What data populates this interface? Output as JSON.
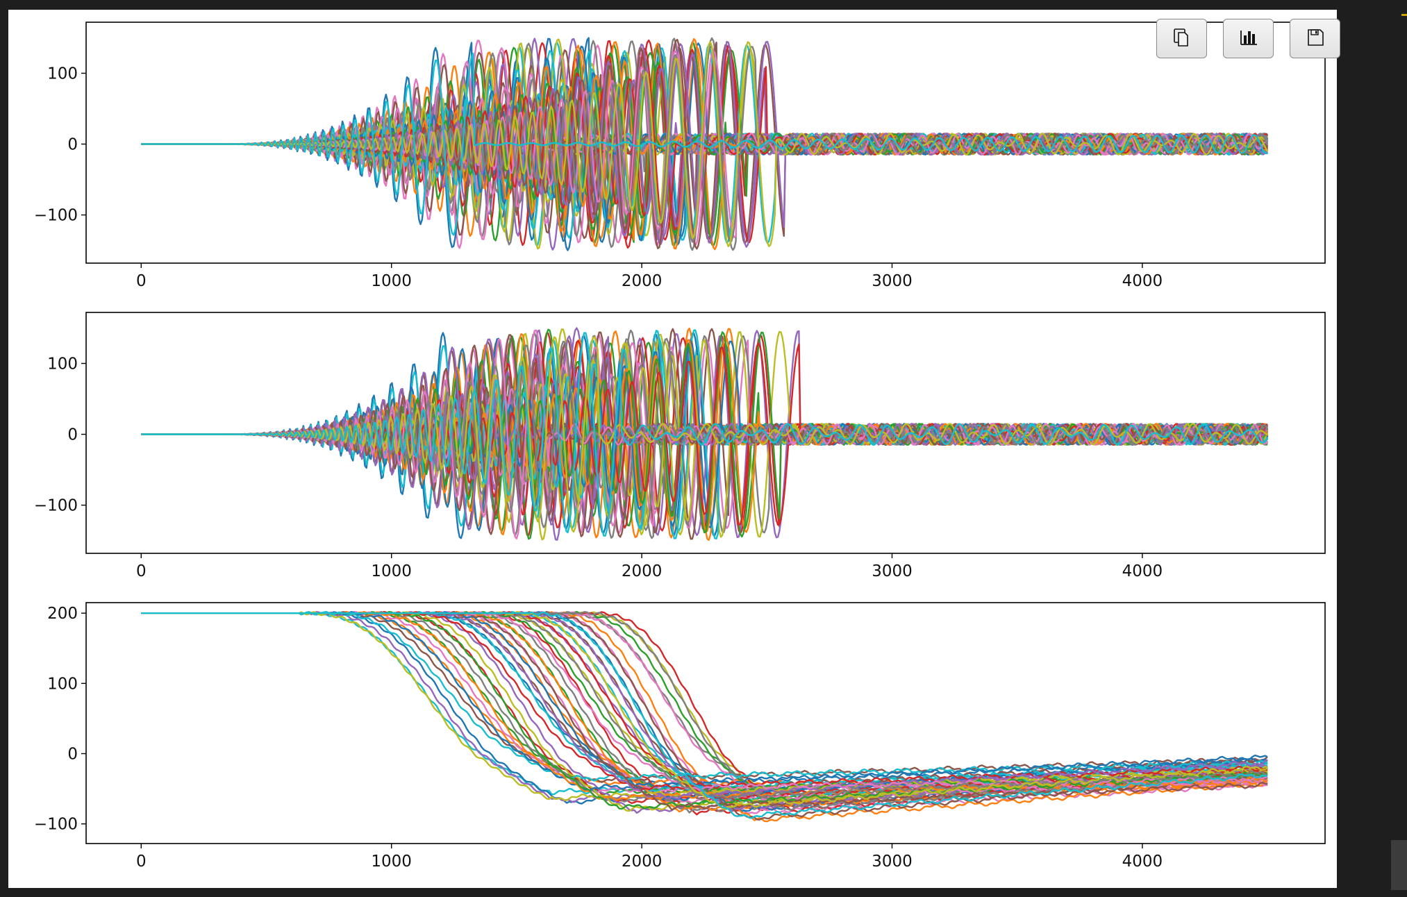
{
  "toolbar": {
    "buttons": [
      {
        "icon": "copy-icon"
      },
      {
        "icon": "bar-chart-icon"
      },
      {
        "icon": "save-icon"
      }
    ]
  },
  "chart_data": [
    {
      "type": "line",
      "title": "",
      "xlabel": "",
      "ylabel": "",
      "xlim": [
        -220,
        4730
      ],
      "ylim": [
        -168,
        172
      ],
      "xticks": [
        0,
        1000,
        2000,
        3000,
        4000
      ],
      "yticks": [
        -100,
        0,
        100
      ],
      "ytick_labels": [
        "−100",
        "0",
        "100"
      ],
      "grid": false,
      "legend": "none",
      "n_series": 50,
      "series_summary": {
        "x_range": [
          0,
          4500
        ],
        "start_value": 0,
        "growth_start": 600,
        "peak_amplitude": 150,
        "peak_x_range": [
          1300,
          2600
        ],
        "settled_amplitude": 15
      }
    },
    {
      "type": "line",
      "title": "",
      "xlabel": "",
      "ylabel": "",
      "xlim": [
        -220,
        4730
      ],
      "ylim": [
        -168,
        172
      ],
      "xticks": [
        0,
        1000,
        2000,
        3000,
        4000
      ],
      "yticks": [
        -100,
        0,
        100
      ],
      "ytick_labels": [
        "−100",
        "0",
        "100"
      ],
      "grid": false,
      "legend": "none",
      "n_series": 50,
      "series_summary": {
        "x_range": [
          0,
          4500
        ],
        "start_value": 0,
        "growth_start": 600,
        "peak_amplitude": 150,
        "peak_x_range": [
          1300,
          2650
        ],
        "settled_amplitude": 15
      }
    },
    {
      "type": "line",
      "title": "",
      "xlabel": "",
      "ylabel": "",
      "xlim": [
        -220,
        4730
      ],
      "ylim": [
        -128,
        215
      ],
      "xticks": [
        0,
        1000,
        2000,
        3000,
        4000
      ],
      "yticks": [
        -100,
        0,
        100,
        200
      ],
      "ytick_labels": [
        "−100",
        "0",
        "100",
        "200"
      ],
      "grid": false,
      "legend": "none",
      "n_series": 50,
      "series_summary": {
        "x_range": [
          0,
          4500
        ],
        "start_value": 200,
        "drop_start_range": [
          600,
          1800
        ],
        "drop_end_range": [
          1600,
          2600
        ],
        "minimum_range": [
          -100,
          -30
        ],
        "final_range": [
          -45,
          -5
        ]
      }
    }
  ]
}
